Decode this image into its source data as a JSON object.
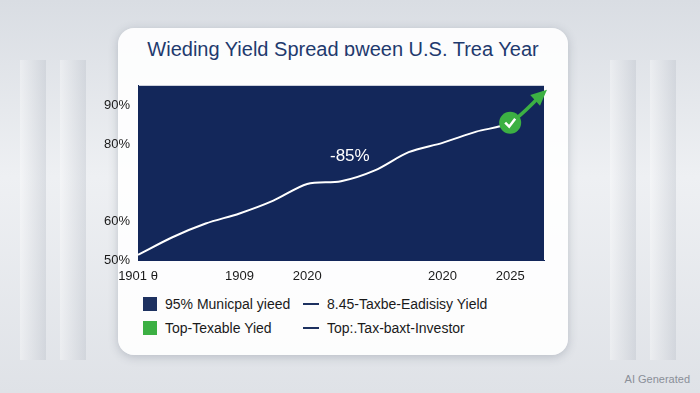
{
  "chart_data": {
    "type": "line",
    "title": "Wieding Yield Spread ɒween U.S. Trea Year",
    "annotation": "-85%",
    "categories": [
      "1901 θ",
      null,
      null,
      "1909",
      null,
      "2020",
      null,
      null,
      null,
      "2020",
      null,
      "2025",
      null
    ],
    "values": [
      51.4,
      55.9,
      59.5,
      62.1,
      65.4,
      69.7,
      70.4,
      73.2,
      77.9,
      80.3,
      83.2,
      85.5,
      93.3
    ],
    "color": "#ffffff",
    "ylim": [
      50,
      95
    ],
    "yticks": [
      {
        "value": 50,
        "label": "50%"
      },
      {
        "value": 60,
        "label": "60%"
      },
      {
        "value": 80,
        "label": "80%"
      },
      {
        "value": 90,
        "label": "90%"
      }
    ],
    "grid": false
  },
  "legend_items": [
    {
      "label": "95% Municpal yieed",
      "color": "#1d3160",
      "marker": "square"
    },
    {
      "label": "8.45-Taxbe-Eadisisy Yield",
      "color": "#1d3160",
      "marker": "line"
    },
    {
      "label": "Top-Texable Yied",
      "color": "#3cb043",
      "marker": "square"
    },
    {
      "label": "Top:.Tax-baxt-Investor",
      "color": "#1d3160",
      "marker": "line"
    }
  ],
  "watermark": "AI Generated"
}
